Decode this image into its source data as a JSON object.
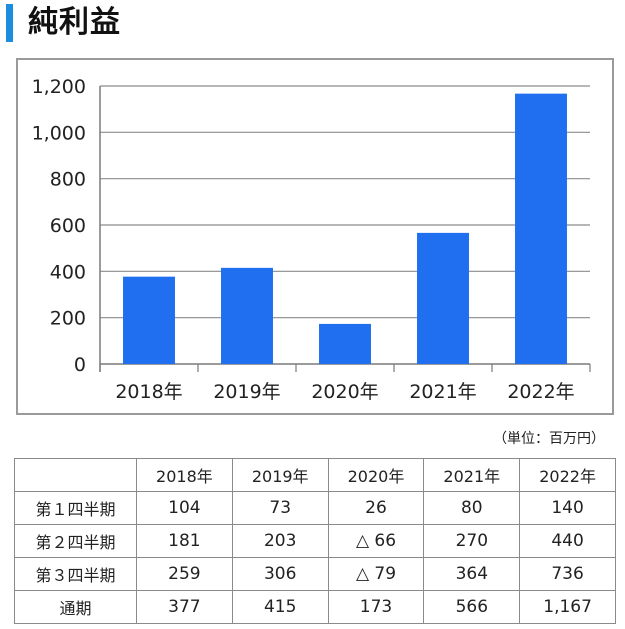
{
  "title": "純利益",
  "colors": {
    "accent": "#1c8ee0",
    "bar": "#1f6ff0",
    "grid": "#8c8c8c"
  },
  "unit_label": "（単位：百万円）",
  "chart_data": {
    "type": "bar",
    "categories": [
      "2018年",
      "2019年",
      "2020年",
      "2021年",
      "2022年"
    ],
    "values": [
      377,
      415,
      173,
      566,
      1167
    ],
    "ylim": [
      0,
      1200
    ],
    "yticks": [
      0,
      200,
      400,
      600,
      800,
      1000,
      1200
    ],
    "ytick_labels": [
      "0",
      "200",
      "400",
      "600",
      "800",
      "1,000",
      "1,200"
    ],
    "grid": true,
    "title": "",
    "xlabel": "",
    "ylabel": ""
  },
  "table": {
    "columns": [
      "",
      "2018年",
      "2019年",
      "2020年",
      "2021年",
      "2022年"
    ],
    "rows": [
      {
        "label": "第１四半期",
        "cells": [
          "104",
          "73",
          "26",
          "80",
          "140"
        ]
      },
      {
        "label": "第２四半期",
        "cells": [
          "181",
          "203",
          "△ 66",
          "270",
          "440"
        ]
      },
      {
        "label": "第３四半期",
        "cells": [
          "259",
          "306",
          "△ 79",
          "364",
          "736"
        ]
      },
      {
        "label": "通期",
        "cells": [
          "377",
          "415",
          "173",
          "566",
          "1,167"
        ]
      }
    ]
  }
}
